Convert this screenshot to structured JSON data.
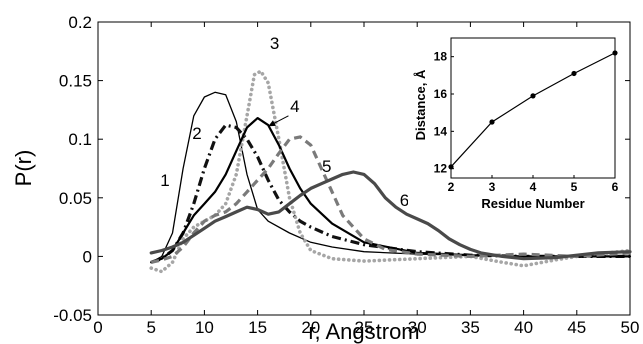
{
  "chart_data": [
    {
      "type": "line",
      "title": "",
      "xlabel": "r, Angstrom",
      "ylabel": "P(r)",
      "xlim": [
        0,
        50
      ],
      "ylim": [
        -0.05,
        0.2
      ],
      "x_ticks": [
        0,
        5,
        10,
        15,
        20,
        25,
        30,
        35,
        40,
        45,
        50
      ],
      "x_tick_labels": [
        "0",
        "5",
        "10",
        "15",
        "20",
        "25",
        "30",
        "35",
        "40",
        "45",
        "50"
      ],
      "y_ticks": [
        -0.05,
        0,
        0.05,
        0.1,
        0.15,
        0.2
      ],
      "y_tick_labels": [
        "-0.05",
        "0",
        "0.05",
        "0.1",
        "0.15",
        "0.2"
      ],
      "grid": false,
      "legend": "none",
      "series": [
        {
          "label": "1",
          "color": "#000000",
          "style": "solid-thin",
          "x": [
            5,
            6,
            7,
            8,
            9,
            10,
            11,
            12,
            13,
            14,
            15,
            16,
            18,
            20,
            22,
            25,
            30,
            35,
            40,
            45,
            50
          ],
          "y": [
            -0.005,
            0,
            0.02,
            0.075,
            0.12,
            0.136,
            0.14,
            0.138,
            0.115,
            0.07,
            0.04,
            0.03,
            0.02,
            0.012,
            0.008,
            0.004,
            0.002,
            0.001,
            0,
            0,
            0
          ]
        },
        {
          "label": "2",
          "color": "#111111",
          "style": "dash-dot",
          "x": [
            5,
            6,
            7,
            8,
            9,
            10,
            11,
            12,
            13,
            14,
            15,
            16,
            17,
            18,
            19,
            20,
            22,
            25,
            30,
            35,
            40,
            45,
            50
          ],
          "y": [
            -0.005,
            -0.002,
            0.005,
            0.02,
            0.045,
            0.075,
            0.1,
            0.112,
            0.11,
            0.1,
            0.085,
            0.065,
            0.048,
            0.038,
            0.03,
            0.025,
            0.017,
            0.01,
            0.004,
            0.001,
            0,
            0,
            0
          ]
        },
        {
          "label": "3",
          "color": "#a6a6a6",
          "style": "dotted",
          "x": [
            5,
            6,
            7,
            8,
            9,
            10,
            11,
            12,
            13,
            14,
            14.7,
            15.3,
            16,
            17,
            18,
            19,
            20,
            22,
            25,
            30,
            35,
            38,
            40,
            43,
            45,
            50
          ],
          "y": [
            -0.01,
            -0.013,
            -0.005,
            0.015,
            0.025,
            0.03,
            0.035,
            0.045,
            0.07,
            0.12,
            0.155,
            0.158,
            0.148,
            0.1,
            0.05,
            0.02,
            0.005,
            -0.002,
            -0.004,
            -0.002,
            0,
            -0.005,
            -0.008,
            -0.003,
            0,
            0.005
          ]
        },
        {
          "label": "4",
          "color": "#000000",
          "style": "solid",
          "x": [
            5,
            6,
            7,
            8,
            9,
            10,
            11,
            12,
            13,
            14,
            15,
            16,
            17,
            18,
            19,
            20,
            22,
            25,
            30,
            35,
            40,
            45,
            50
          ],
          "y": [
            -0.005,
            -0.002,
            0.005,
            0.02,
            0.035,
            0.045,
            0.055,
            0.07,
            0.09,
            0.11,
            0.118,
            0.112,
            0.095,
            0.075,
            0.058,
            0.045,
            0.028,
            0.012,
            0.003,
            0.001,
            0,
            0,
            0
          ]
        },
        {
          "label": "5",
          "color": "#7a7a7a",
          "style": "dashed",
          "x": [
            5,
            6,
            7,
            8,
            9,
            10,
            11,
            12,
            13,
            14,
            15,
            16,
            17,
            18,
            19,
            20,
            21,
            22,
            23,
            25,
            27,
            30,
            35,
            40,
            45,
            50
          ],
          "y": [
            -0.005,
            -0.003,
            0,
            0.008,
            0.02,
            0.03,
            0.035,
            0.038,
            0.045,
            0.055,
            0.065,
            0.075,
            0.088,
            0.1,
            0.102,
            0.095,
            0.075,
            0.055,
            0.035,
            0.015,
            0.006,
            0.002,
            0,
            0.002,
            0,
            0.003
          ]
        },
        {
          "label": "6",
          "color": "#4a4a4a",
          "style": "solid-thick",
          "x": [
            5,
            6,
            7,
            8,
            9,
            10,
            11,
            12,
            13,
            14,
            15,
            16,
            17,
            18,
            19,
            20,
            21,
            22,
            23,
            24,
            25,
            26,
            27,
            28,
            29,
            30,
            31,
            32,
            33,
            34,
            35,
            36,
            38,
            40,
            43,
            45,
            47,
            50
          ],
          "y": [
            0.003,
            0.005,
            0.008,
            0.012,
            0.018,
            0.024,
            0.03,
            0.034,
            0.038,
            0.042,
            0.04,
            0.036,
            0.038,
            0.045,
            0.052,
            0.058,
            0.062,
            0.066,
            0.07,
            0.072,
            0.07,
            0.062,
            0.05,
            0.042,
            0.036,
            0.032,
            0.028,
            0.022,
            0.015,
            0.01,
            0.006,
            0.003,
            0,
            -0.002,
            -0.001,
            0.001,
            0.003,
            0.004
          ]
        }
      ],
      "annotations": [
        {
          "text": "1",
          "x": 6.3,
          "y": 0.06
        },
        {
          "text": "2",
          "x": 9.3,
          "y": 0.1
        },
        {
          "text": "3",
          "x": 16.6,
          "y": 0.177
        },
        {
          "text": "4",
          "x": 18.5,
          "y": 0.123
        },
        {
          "text": "5",
          "x": 21.5,
          "y": 0.072
        },
        {
          "text": "6",
          "x": 28.8,
          "y": 0.043
        }
      ],
      "arrow": {
        "from": [
          17.9,
          0.12
        ],
        "to": [
          16,
          0.111
        ]
      }
    },
    {
      "type": "line",
      "title": "",
      "xlabel": "Residue Number",
      "ylabel": "Distance, Å",
      "xlim": [
        2,
        6
      ],
      "ylim": [
        11.5,
        19
      ],
      "x_ticks": [
        2,
        3,
        4,
        5,
        6
      ],
      "x_tick_labels": [
        "2",
        "3",
        "4",
        "5",
        "6"
      ],
      "y_ticks": [
        12,
        14,
        16,
        18
      ],
      "y_tick_labels": [
        "12",
        "14",
        "16",
        "18"
      ],
      "grid": false,
      "legend": "none",
      "series": [
        {
          "color": "#000000",
          "marker": "circle",
          "x": [
            2,
            3,
            4,
            5,
            6
          ],
          "y": [
            12.1,
            14.5,
            15.9,
            17.1,
            18.2
          ]
        }
      ]
    }
  ]
}
